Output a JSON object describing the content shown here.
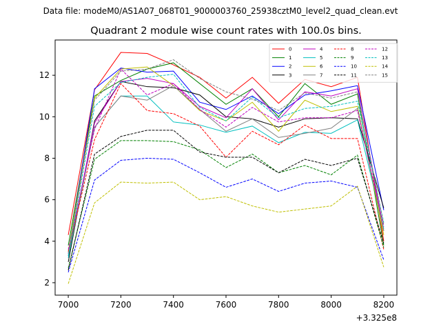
{
  "figure": {
    "suptitle": "Data file: modeM0/AS1A07_068T01_9000003760_25938cztM0_level2_quad_clean.evt"
  },
  "chart_data": {
    "type": "line",
    "title": "Quadrant 2 module wise count rates with 100.0s bins.",
    "xlabel": "",
    "ylabel": "",
    "x_offset_label": "+3.325e8",
    "x": [
      7000,
      7100,
      7200,
      7300,
      7400,
      7500,
      7600,
      7700,
      7800,
      7900,
      8000,
      8100,
      8200
    ],
    "xlim": [
      6950,
      8250
    ],
    "ylim": [
      1.4,
      13.7
    ],
    "xticks": [
      7000,
      7200,
      7400,
      7600,
      7800,
      8000,
      8200
    ],
    "yticks": [
      2,
      4,
      6,
      8,
      10,
      12
    ],
    "grid": false,
    "legend": {
      "placement": "top-right",
      "ncol": 4
    },
    "series": [
      {
        "name": "0",
        "color": "#ff0000",
        "dash": "solid",
        "values": [
          4.3,
          11.3,
          13.1,
          13.05,
          12.5,
          11.9,
          10.9,
          11.9,
          10.65,
          11.8,
          11.45,
          11.9,
          4.0
        ]
      },
      {
        "name": "1",
        "color": "#008000",
        "dash": "solid",
        "values": [
          3.8,
          11.0,
          11.75,
          12.3,
          12.6,
          11.6,
          10.6,
          11.35,
          10.0,
          11.6,
          10.6,
          11.1,
          3.8
        ]
      },
      {
        "name": "2",
        "color": "#0000ff",
        "dash": "solid",
        "values": [
          3.4,
          11.35,
          12.35,
          12.15,
          12.2,
          10.7,
          10.35,
          11.0,
          10.15,
          11.05,
          11.25,
          11.5,
          5.5
        ]
      },
      {
        "name": "3",
        "color": "#000000",
        "dash": "solid",
        "values": [
          3.0,
          9.8,
          11.7,
          11.45,
          11.4,
          11.05,
          10.0,
          9.9,
          9.5,
          9.9,
          9.95,
          9.9,
          5.6
        ]
      },
      {
        "name": "4",
        "color": "#bf00bf",
        "dash": "solid",
        "values": [
          3.3,
          9.7,
          11.7,
          11.85,
          11.6,
          10.5,
          9.95,
          11.35,
          9.85,
          11.2,
          11.0,
          11.35,
          4.5
        ]
      },
      {
        "name": "5",
        "color": "#00bfbf",
        "dash": "solid",
        "values": [
          3.2,
          9.5,
          11.0,
          11.0,
          9.75,
          9.6,
          9.25,
          9.55,
          8.75,
          9.25,
          9.2,
          9.85,
          4.6
        ]
      },
      {
        "name": "6",
        "color": "#bfbf00",
        "dash": "solid",
        "values": [
          3.5,
          10.9,
          12.3,
          12.4,
          11.5,
          10.3,
          9.8,
          10.7,
          9.3,
          10.8,
          10.25,
          10.5,
          4.3
        ]
      },
      {
        "name": "7",
        "color": "#808080",
        "dash": "solid",
        "values": [
          3.3,
          9.5,
          11.0,
          10.8,
          11.5,
          10.35,
          9.3,
          9.9,
          9.0,
          9.2,
          9.45,
          10.4,
          4.5
        ]
      },
      {
        "name": "8",
        "color": "#ff0000",
        "dash": "dashed",
        "values": [
          3.5,
          8.9,
          11.6,
          10.3,
          10.15,
          9.55,
          8.05,
          9.3,
          8.65,
          9.6,
          8.95,
          8.95,
          3.6
        ]
      },
      {
        "name": "9",
        "color": "#008000",
        "dash": "dashed",
        "values": [
          2.7,
          7.95,
          8.85,
          8.85,
          8.8,
          8.4,
          7.55,
          8.2,
          7.3,
          7.65,
          7.2,
          8.15,
          3.7
        ]
      },
      {
        "name": "10",
        "color": "#0000ff",
        "dash": "dashed",
        "values": [
          2.5,
          6.95,
          7.9,
          8.0,
          7.95,
          7.3,
          6.6,
          7.0,
          6.4,
          6.8,
          6.9,
          6.6,
          3.1
        ]
      },
      {
        "name": "11",
        "color": "#000000",
        "dash": "dashed",
        "values": [
          2.6,
          8.2,
          9.05,
          9.35,
          9.35,
          8.3,
          8.05,
          8.05,
          7.3,
          7.95,
          7.65,
          8.0,
          3.9
        ]
      },
      {
        "name": "12",
        "color": "#bf00bf",
        "dash": "dashed",
        "values": [
          3.6,
          9.4,
          12.3,
          11.05,
          11.6,
          10.35,
          9.5,
          10.45,
          9.75,
          9.95,
          9.95,
          10.3,
          4.7
        ]
      },
      {
        "name": "13",
        "color": "#00bfbf",
        "dash": "dashed",
        "values": [
          3.3,
          10.5,
          11.65,
          11.9,
          12.05,
          10.45,
          9.8,
          10.95,
          9.95,
          10.4,
          10.5,
          10.75,
          4.9
        ]
      },
      {
        "name": "14",
        "color": "#bfbf00",
        "dash": "dashed",
        "values": [
          1.95,
          5.85,
          6.85,
          6.8,
          6.85,
          6.0,
          6.15,
          5.7,
          5.4,
          5.55,
          5.7,
          6.65,
          2.75
        ]
      },
      {
        "name": "15",
        "color": "#808080",
        "dash": "dashed",
        "values": [
          3.4,
          10.8,
          12.2,
          12.3,
          12.75,
          11.85,
          11.2,
          10.85,
          10.3,
          11.15,
          10.9,
          11.2,
          4.8
        ]
      }
    ]
  }
}
